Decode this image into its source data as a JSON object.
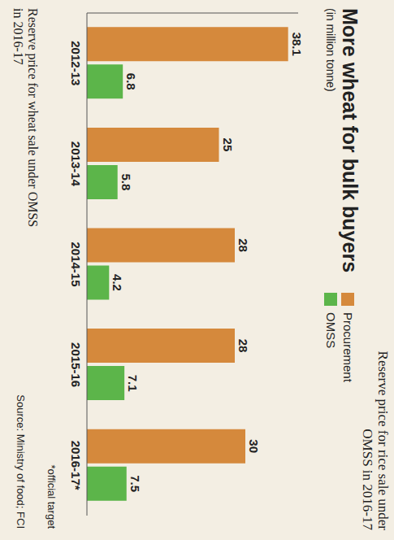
{
  "chart_data": {
    "type": "bar",
    "title": "More wheat for bulk buyers",
    "subtitle": "(in million tonne)",
    "categories": [
      "2012-13",
      "2013-14",
      "2014-15",
      "2015-16",
      "2016-17*"
    ],
    "series": [
      {
        "name": "Procurement",
        "color": "#d5893c",
        "values": [
          38.1,
          25,
          28,
          28,
          30
        ]
      },
      {
        "name": "OMSS",
        "color": "#5cb54a",
        "values": [
          6.8,
          5.8,
          4.2,
          7.1,
          7.5
        ]
      }
    ],
    "ylim": [
      0,
      40
    ],
    "tick_labels": "x",
    "data_labels": true,
    "legend": "top",
    "grid": false,
    "footnote": "*official target",
    "source": "Source: Ministry of food; FCI",
    "annotations": [
      "Reserve price for rice sale under OMSS in 2016-17",
      "Reserve price for wheat sale under OMSS in 2016-17"
    ]
  }
}
